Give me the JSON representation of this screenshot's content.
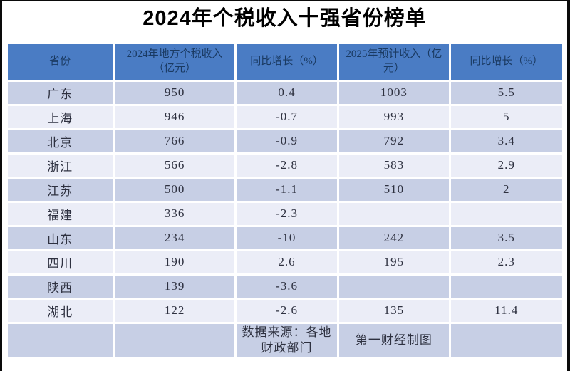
{
  "page": {
    "title": "2024年个税收入十强省份榜单",
    "colors": {
      "frame_border": "#0a0a0a",
      "header_bg": "#4a7cc4",
      "header_text": "#1a3a62",
      "row_odd_bg": "#c7cfe5",
      "row_even_bg": "#ebedf7",
      "cell_text": "#2e3140",
      "title_text": "#000000"
    }
  },
  "table": {
    "columns": [
      "省份",
      "2024年地方个税收入（亿元）",
      "同比增长（%）",
      "2025年预计收入（亿元）",
      "同比增长（%）"
    ],
    "rows": [
      {
        "province": "广东",
        "income_2024": "950",
        "yoy_2024": "0.4",
        "forecast_2025": "1003",
        "yoy_2025": "5.5"
      },
      {
        "province": "上海",
        "income_2024": "946",
        "yoy_2024": "-0.7",
        "forecast_2025": "993",
        "yoy_2025": "5"
      },
      {
        "province": "北京",
        "income_2024": "766",
        "yoy_2024": "-0.9",
        "forecast_2025": "792",
        "yoy_2025": "3.4"
      },
      {
        "province": "浙江",
        "income_2024": "566",
        "yoy_2024": "-2.8",
        "forecast_2025": "583",
        "yoy_2025": "2.9"
      },
      {
        "province": "江苏",
        "income_2024": "500",
        "yoy_2024": "-1.1",
        "forecast_2025": "510",
        "yoy_2025": "2"
      },
      {
        "province": "福建",
        "income_2024": "336",
        "yoy_2024": "-2.3",
        "forecast_2025": "",
        "yoy_2025": ""
      },
      {
        "province": "山东",
        "income_2024": "234",
        "yoy_2024": "-10",
        "forecast_2025": "242",
        "yoy_2025": "3.5"
      },
      {
        "province": "四川",
        "income_2024": "190",
        "yoy_2024": "2.6",
        "forecast_2025": "195",
        "yoy_2025": "2.3"
      },
      {
        "province": "陕西",
        "income_2024": "139",
        "yoy_2024": "-3.6",
        "forecast_2025": "",
        "yoy_2025": ""
      },
      {
        "province": "湖北",
        "income_2024": "122",
        "yoy_2024": "-2.6",
        "forecast_2025": "135",
        "yoy_2025": "11.4"
      }
    ],
    "footer": {
      "source": "数据来源：各地财政部门",
      "credit": "第一财经制图"
    }
  },
  "chart_data": {
    "type": "table",
    "title": "2024年个税收入十强省份榜单",
    "columns": [
      "省份",
      "2024年地方个税收入（亿元）",
      "同比增长（%）",
      "2025年预计收入（亿元）",
      "同比增长（%）"
    ],
    "rows": [
      [
        "广东",
        950,
        0.4,
        1003,
        5.5
      ],
      [
        "上海",
        946,
        -0.7,
        993,
        5
      ],
      [
        "北京",
        766,
        -0.9,
        792,
        3.4
      ],
      [
        "浙江",
        566,
        -2.8,
        583,
        2.9
      ],
      [
        "江苏",
        500,
        -1.1,
        510,
        2
      ],
      [
        "福建",
        336,
        -2.3,
        null,
        null
      ],
      [
        "山东",
        234,
        -10,
        242,
        3.5
      ],
      [
        "四川",
        190,
        2.6,
        195,
        2.3
      ],
      [
        "陕西",
        139,
        -3.6,
        null,
        null
      ],
      [
        "湖北",
        122,
        -2.6,
        135,
        11.4
      ]
    ],
    "annotations": [
      "数据来源：各地财政部门",
      "第一财经制图"
    ]
  }
}
